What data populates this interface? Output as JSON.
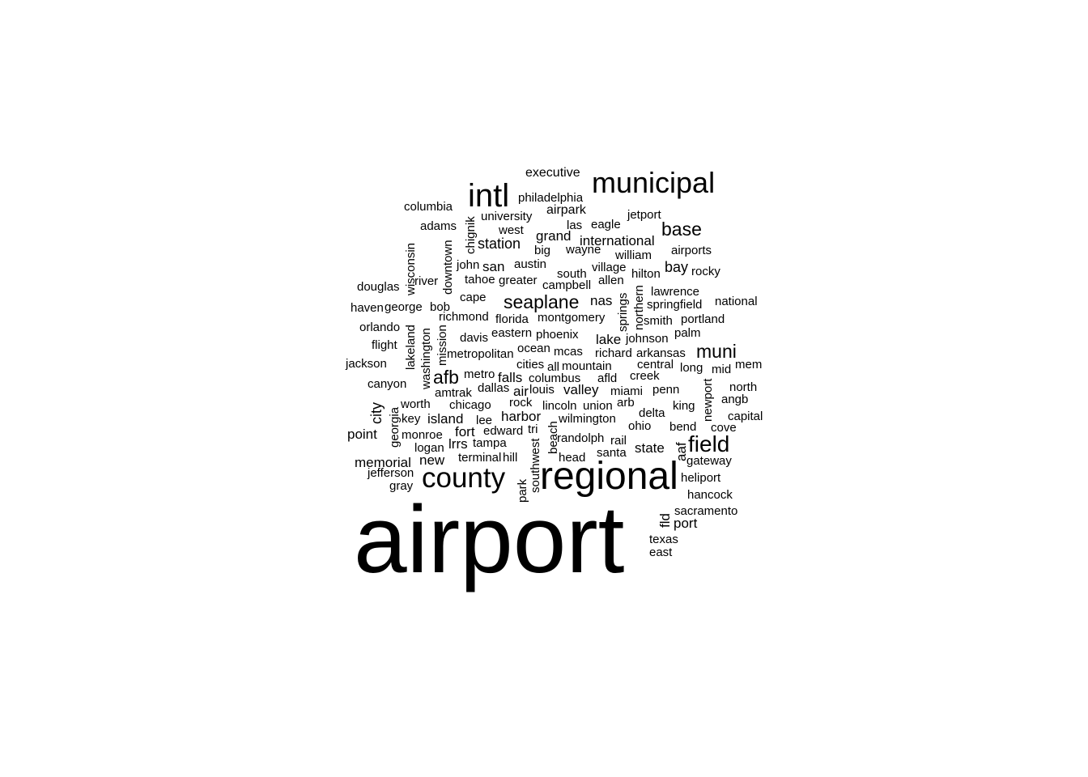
{
  "text_color": "#000000",
  "background_color": "#ffffff",
  "words": [
    {
      "text": "airport",
      "weight": 100
    },
    {
      "text": "regional",
      "weight": 46
    },
    {
      "text": "municipal",
      "weight": 36
    },
    {
      "text": "intl",
      "weight": 40
    },
    {
      "text": "county",
      "weight": 36
    },
    {
      "text": "field",
      "weight": 28
    },
    {
      "text": "seaplane",
      "weight": 22
    },
    {
      "text": "base",
      "weight": 22
    },
    {
      "text": "muni",
      "weight": 22
    },
    {
      "text": "afb",
      "weight": 22
    },
    {
      "text": "executive",
      "weight": 16
    },
    {
      "text": "philadelphia",
      "weight": 15
    },
    {
      "text": "columbia",
      "weight": 15
    },
    {
      "text": "airpark",
      "weight": 16
    },
    {
      "text": "university",
      "weight": 15
    },
    {
      "text": "jetport",
      "weight": 15
    },
    {
      "text": "las",
      "weight": 15
    },
    {
      "text": "eagle",
      "weight": 15
    },
    {
      "text": "adams",
      "weight": 15
    },
    {
      "text": "west",
      "weight": 15
    },
    {
      "text": "chignik",
      "weight": 15
    },
    {
      "text": "grand",
      "weight": 17
    },
    {
      "text": "international",
      "weight": 17
    },
    {
      "text": "station",
      "weight": 18
    },
    {
      "text": "big",
      "weight": 15
    },
    {
      "text": "wayne",
      "weight": 15
    },
    {
      "text": "airports",
      "weight": 15
    },
    {
      "text": "wisconsin",
      "weight": 15
    },
    {
      "text": "downtown",
      "weight": 15
    },
    {
      "text": "william",
      "weight": 15
    },
    {
      "text": "john",
      "weight": 15
    },
    {
      "text": "san",
      "weight": 17
    },
    {
      "text": "austin",
      "weight": 15
    },
    {
      "text": "village",
      "weight": 15
    },
    {
      "text": "bay",
      "weight": 18
    },
    {
      "text": "rocky",
      "weight": 15
    },
    {
      "text": "south",
      "weight": 15
    },
    {
      "text": "hilton",
      "weight": 15
    },
    {
      "text": "tahoe",
      "weight": 15
    },
    {
      "text": "greater",
      "weight": 15
    },
    {
      "text": "allen",
      "weight": 15
    },
    {
      "text": "river",
      "weight": 15
    },
    {
      "text": "campbell",
      "weight": 15
    },
    {
      "text": "douglas",
      "weight": 15
    },
    {
      "text": "lawrence",
      "weight": 15
    },
    {
      "text": "springs",
      "weight": 15
    },
    {
      "text": "northern",
      "weight": 15
    },
    {
      "text": "cape",
      "weight": 15
    },
    {
      "text": "nas",
      "weight": 17
    },
    {
      "text": "national",
      "weight": 15
    },
    {
      "text": "haven",
      "weight": 15
    },
    {
      "text": "george",
      "weight": 15
    },
    {
      "text": "bob",
      "weight": 15
    },
    {
      "text": "springfield",
      "weight": 15
    },
    {
      "text": "richmond",
      "weight": 15
    },
    {
      "text": "florida",
      "weight": 15
    },
    {
      "text": "montgomery",
      "weight": 15
    },
    {
      "text": "portland",
      "weight": 15
    },
    {
      "text": "smith",
      "weight": 15
    },
    {
      "text": "orlando",
      "weight": 15
    },
    {
      "text": "mission",
      "weight": 15
    },
    {
      "text": "eastern",
      "weight": 15
    },
    {
      "text": "phoenix",
      "weight": 15
    },
    {
      "text": "palm",
      "weight": 15
    },
    {
      "text": "davis",
      "weight": 15
    },
    {
      "text": "lake",
      "weight": 17
    },
    {
      "text": "johnson",
      "weight": 15
    },
    {
      "text": "flight",
      "weight": 15
    },
    {
      "text": "lakeland",
      "weight": 15
    },
    {
      "text": "washington",
      "weight": 15
    },
    {
      "text": "ocean",
      "weight": 15
    },
    {
      "text": "metropolitan",
      "weight": 15
    },
    {
      "text": "mcas",
      "weight": 15
    },
    {
      "text": "richard",
      "weight": 15
    },
    {
      "text": "arkansas",
      "weight": 15
    },
    {
      "text": "jackson",
      "weight": 15
    },
    {
      "text": "cities",
      "weight": 15
    },
    {
      "text": "all",
      "weight": 15
    },
    {
      "text": "mountain",
      "weight": 15
    },
    {
      "text": "central",
      "weight": 15
    },
    {
      "text": "long",
      "weight": 15
    },
    {
      "text": "mid",
      "weight": 15
    },
    {
      "text": "mem",
      "weight": 15
    },
    {
      "text": "metro",
      "weight": 15
    },
    {
      "text": "falls",
      "weight": 17
    },
    {
      "text": "columbus",
      "weight": 15
    },
    {
      "text": "afld",
      "weight": 15
    },
    {
      "text": "creek",
      "weight": 15
    },
    {
      "text": "canyon",
      "weight": 15
    },
    {
      "text": "dallas",
      "weight": 15
    },
    {
      "text": "air",
      "weight": 17
    },
    {
      "text": "louis",
      "weight": 15
    },
    {
      "text": "valley",
      "weight": 17
    },
    {
      "text": "miami",
      "weight": 15
    },
    {
      "text": "penn",
      "weight": 15
    },
    {
      "text": "north",
      "weight": 15
    },
    {
      "text": "newport",
      "weight": 15
    },
    {
      "text": "city",
      "weight": 18
    },
    {
      "text": "amtrak",
      "weight": 15
    },
    {
      "text": "angb",
      "weight": 15
    },
    {
      "text": "worth",
      "weight": 15
    },
    {
      "text": "chicago",
      "weight": 15
    },
    {
      "text": "rock",
      "weight": 15
    },
    {
      "text": "lincoln",
      "weight": 15
    },
    {
      "text": "union",
      "weight": 15
    },
    {
      "text": "arb",
      "weight": 15
    },
    {
      "text": "king",
      "weight": 15
    },
    {
      "text": "georgia",
      "weight": 15
    },
    {
      "text": "harbor",
      "weight": 17
    },
    {
      "text": "delta",
      "weight": 15
    },
    {
      "text": "capital",
      "weight": 15
    },
    {
      "text": "key",
      "weight": 15
    },
    {
      "text": "island",
      "weight": 17
    },
    {
      "text": "lee",
      "weight": 15
    },
    {
      "text": "wilmington",
      "weight": 15
    },
    {
      "text": "ohio",
      "weight": 15
    },
    {
      "text": "bend",
      "weight": 15
    },
    {
      "text": "cove",
      "weight": 15
    },
    {
      "text": "edward",
      "weight": 15
    },
    {
      "text": "tri",
      "weight": 15
    },
    {
      "text": "beach",
      "weight": 15
    },
    {
      "text": "point",
      "weight": 17
    },
    {
      "text": "fort",
      "weight": 17
    },
    {
      "text": "monroe",
      "weight": 15
    },
    {
      "text": "randolph",
      "weight": 15
    },
    {
      "text": "rail",
      "weight": 15
    },
    {
      "text": "lrrs",
      "weight": 17
    },
    {
      "text": "tampa",
      "weight": 15
    },
    {
      "text": "state",
      "weight": 17
    },
    {
      "text": "aaf",
      "weight": 17
    },
    {
      "text": "logan",
      "weight": 15
    },
    {
      "text": "southwest",
      "weight": 15
    },
    {
      "text": "santa",
      "weight": 15
    },
    {
      "text": "terminal",
      "weight": 15
    },
    {
      "text": "hill",
      "weight": 15
    },
    {
      "text": "head",
      "weight": 15
    },
    {
      "text": "gateway",
      "weight": 15
    },
    {
      "text": "memorial",
      "weight": 17
    },
    {
      "text": "new",
      "weight": 17
    },
    {
      "text": "jefferson",
      "weight": 15
    },
    {
      "text": "heliport",
      "weight": 15
    },
    {
      "text": "gray",
      "weight": 15
    },
    {
      "text": "park",
      "weight": 15
    },
    {
      "text": "hancock",
      "weight": 15
    },
    {
      "text": "fld",
      "weight": 17
    },
    {
      "text": "sacramento",
      "weight": 15
    },
    {
      "text": "port",
      "weight": 17
    },
    {
      "text": "texas",
      "weight": 15
    },
    {
      "text": "east",
      "weight": 15
    }
  ]
}
